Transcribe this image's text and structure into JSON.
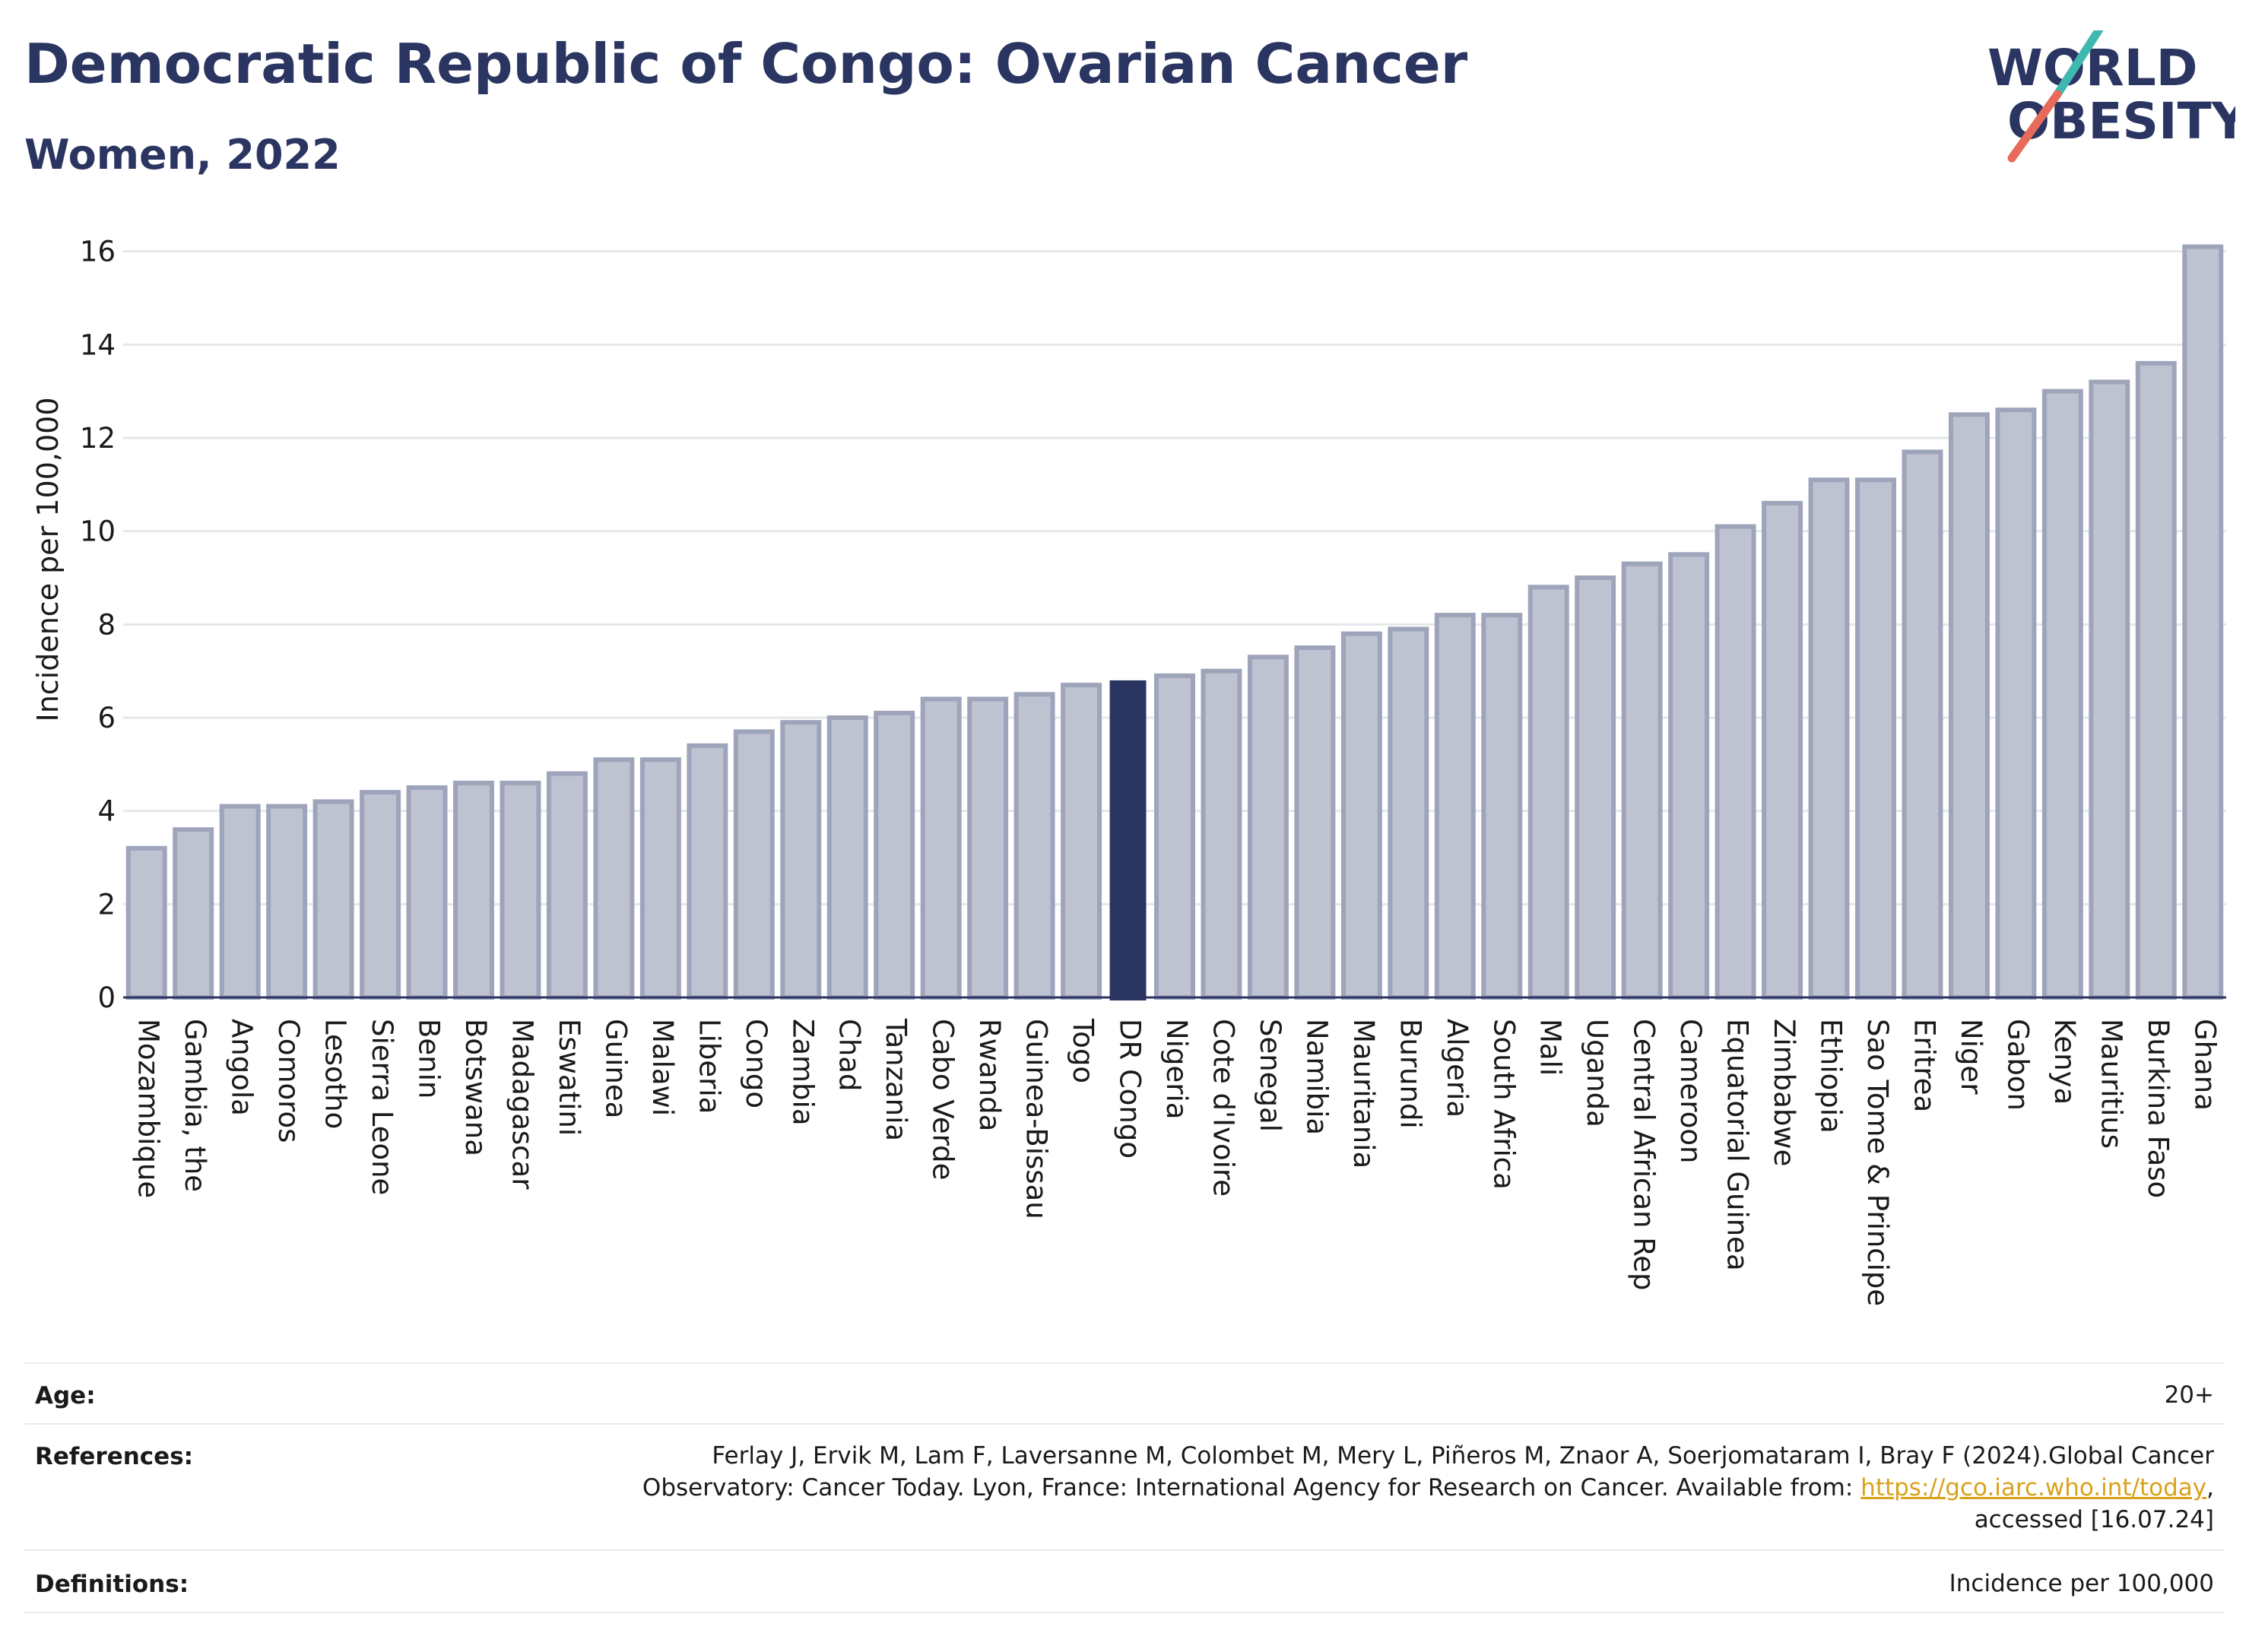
{
  "header": {
    "title": "Democratic Republic of Congo: Ovarian Cancer",
    "subtitle": "Women, 2022",
    "logo_line1": "WORLD",
    "logo_line2": "OBESITY"
  },
  "colors": {
    "highlight": "#2b3561",
    "bar_fill": "#bec2d1",
    "bar_stroke": "#9ea4ba",
    "grid": "#e5e7ea",
    "logo_teal": "#3fb8b0",
    "logo_coral": "#e66b5b"
  },
  "chart_data": {
    "type": "bar",
    "ylabel": "Incidence per 100,000",
    "ylim": [
      0,
      16.5
    ],
    "yticks": [
      0,
      2,
      4,
      6,
      8,
      10,
      12,
      14,
      16
    ],
    "grid": true,
    "highlight_category": "DR Congo",
    "categories": [
      "Mozambique",
      "Gambia, the",
      "Angola",
      "Comoros",
      "Lesotho",
      "Sierra Leone",
      "Benin",
      "Botswana",
      "Madagascar",
      "Eswatini",
      "Guinea",
      "Malawi",
      "Liberia",
      "Congo",
      "Zambia",
      "Chad",
      "Tanzania",
      "Cabo Verde",
      "Rwanda",
      "Guinea-Bissau",
      "Togo",
      "DR Congo",
      "Nigeria",
      "Cote d'Ivoire",
      "Senegal",
      "Namibia",
      "Mauritania",
      "Burundi",
      "Algeria",
      "South Africa",
      "Mali",
      "Uganda",
      "Central African Rep",
      "Cameroon",
      "Equatorial Guinea",
      "Zimbabwe",
      "Ethiopia",
      "Sao Tome & Principe",
      "Eritrea",
      "Niger",
      "Gabon",
      "Kenya",
      "Mauritius",
      "Burkina Faso",
      "Ghana"
    ],
    "values": [
      3.2,
      3.6,
      4.1,
      4.1,
      4.2,
      4.4,
      4.5,
      4.6,
      4.6,
      4.8,
      5.1,
      5.1,
      5.4,
      5.7,
      5.9,
      6.0,
      6.1,
      6.4,
      6.4,
      6.5,
      6.7,
      6.8,
      6.9,
      7.0,
      7.3,
      7.5,
      7.8,
      7.9,
      8.2,
      8.2,
      8.8,
      9.0,
      9.3,
      9.5,
      10.1,
      10.6,
      11.1,
      11.1,
      11.7,
      12.5,
      12.6,
      13.0,
      13.2,
      13.6,
      16.1
    ]
  },
  "info_table": {
    "age_label": "Age:",
    "age_value": "20+",
    "references_label": "References:",
    "references_line1": "Ferlay J, Ervik M, Lam F, Laversanne M, Colombet M, Mery L, Piñeros M, Znaor A, Soerjomataram I, Bray F (2024).Global Cancer",
    "references_line2_prefix": "Observatory: Cancer Today. Lyon, France: International Agency for Research on Cancer. Available from: ",
    "references_link": "https://gco.iarc.who.int/today",
    "references_line2_suffix": ",",
    "references_line3": "accessed [16.07.24]",
    "definitions_label": "Definitions:",
    "definitions_value": "Incidence per 100,000"
  }
}
